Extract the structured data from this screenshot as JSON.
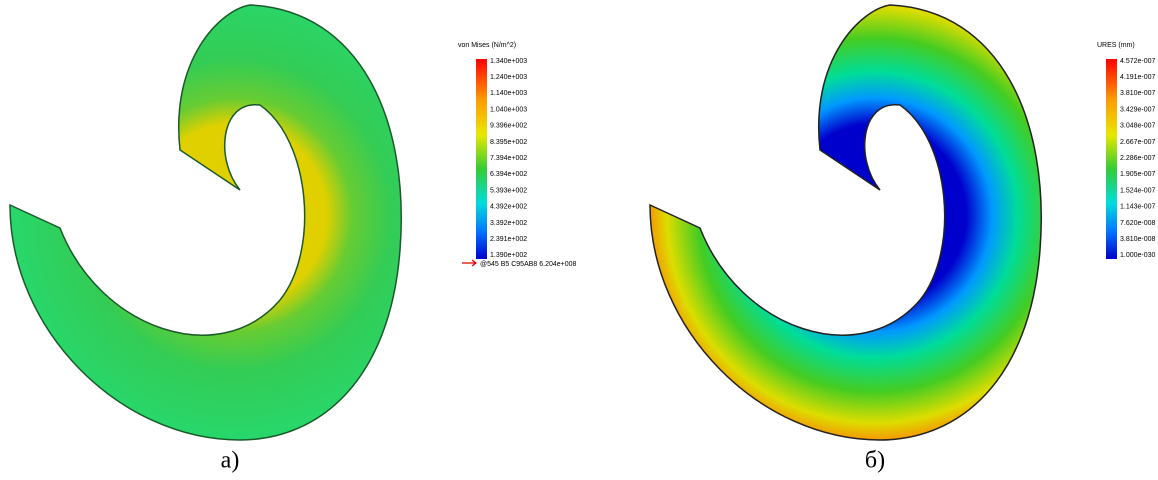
{
  "panels": [
    {
      "legend_title": "von Mises (N/m^2)",
      "legend_labels": [
        "1.340e+003",
        "1.240e+003",
        "1.140e+003",
        "1.040e+003",
        "9.396e+002",
        "8.395e+002",
        "7.394e+002",
        "6.394e+002",
        "5.393e+002",
        "4.392e+002",
        "3.392e+002",
        "2.391e+002",
        "1.390e+002"
      ],
      "annotation": "@545  B5 C95AB8  6.204e+008",
      "caption": "а)"
    },
    {
      "legend_title": "URES (mm)",
      "legend_labels": [
        "4.572e-007",
        "4.191e-007",
        "3.810e-007",
        "3.429e-007",
        "3.048e-007",
        "2.667e-007",
        "2.286e-007",
        "1.905e-007",
        "1.524e-007",
        "1.143e-007",
        "7.620e-008",
        "3.810e-008",
        "1.000e-030"
      ],
      "caption": "б)"
    }
  ]
}
